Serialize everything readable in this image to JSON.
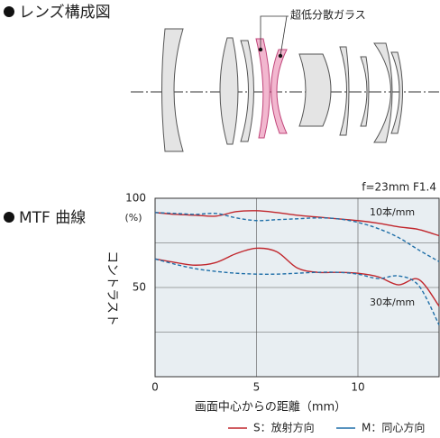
{
  "lens_section": {
    "heading": "レンズ構成図",
    "label": "超低分散ガラス"
  },
  "mtf_section": {
    "heading": "MTF 曲線"
  },
  "chart_data": {
    "type": "line",
    "title": "f=23mm F1.4",
    "x_label": "画面中心からの距離（mm）",
    "y_label": "コントラスト",
    "y_unit": "(%)",
    "x": [
      0,
      1,
      2,
      3,
      4,
      5,
      6,
      7,
      8,
      9,
      10,
      11,
      12,
      13,
      14
    ],
    "xlim": [
      0,
      14
    ],
    "ylim": [
      0,
      100
    ],
    "xticks": [
      0,
      5,
      10
    ],
    "yticks": [
      50,
      100
    ],
    "ygrid": [
      25,
      50,
      75
    ],
    "series": [
      {
        "color": "#c1272d",
        "dashed": false,
        "values": [
          92,
          91,
          90.5,
          90,
          92.5,
          93,
          92,
          90.5,
          89.5,
          88.5,
          87.5,
          86,
          84,
          82.5,
          79
        ]
      },
      {
        "color": "#1f6fa8",
        "dashed": true,
        "values": [
          92,
          91.5,
          91,
          91.5,
          89,
          87.5,
          88,
          88.5,
          89,
          88.5,
          86.5,
          83,
          78,
          71,
          64.5
        ]
      },
      {
        "color": "#c1272d",
        "dashed": false,
        "values": [
          66,
          64,
          62.5,
          64,
          69,
          72,
          70,
          61,
          58.5,
          58.5,
          58,
          56,
          51.5,
          54.5,
          39.5
        ]
      },
      {
        "color": "#1f6fa8",
        "dashed": true,
        "values": [
          66,
          63,
          60.5,
          59,
          58,
          57.5,
          57.5,
          58,
          58.5,
          58.5,
          57.5,
          55,
          56.5,
          51,
          29
        ]
      }
    ],
    "annotations": [
      "10本/mm",
      "30本/mm"
    ],
    "legend": [
      {
        "label": "S：放射方向",
        "color": "#c1272d"
      },
      {
        "label": "M：同心方向",
        "color": "#1f6fa8"
      }
    ]
  }
}
